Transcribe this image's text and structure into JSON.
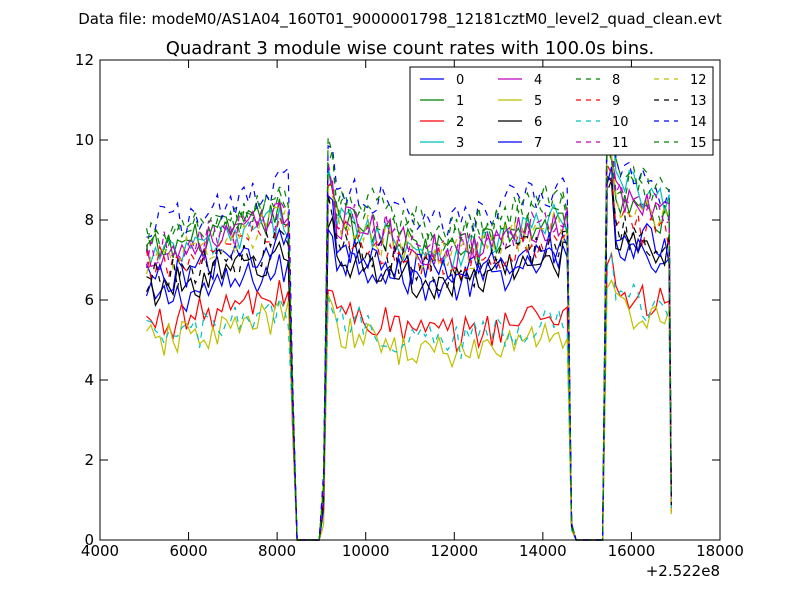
{
  "figure": {
    "suptitle": "Data file: modeM0/AS1A04_160T01_9000001798_12181cztM0_level2_quad_clean.evt",
    "title": "Quadrant 3 module wise count rates with 100.0s bins.",
    "offset_label": "+2.522e8"
  },
  "chart_data": {
    "type": "line",
    "title": "Quadrant 3 module wise count rates with 100.0s bins.",
    "xlabel": "",
    "ylabel": "",
    "xlim": [
      4000,
      18000
    ],
    "ylim": [
      0,
      12
    ],
    "x_offset": 252200000,
    "x_ticks": [
      4000,
      6000,
      8000,
      10000,
      12000,
      14000,
      16000,
      18000
    ],
    "y_ticks": [
      0,
      2,
      4,
      6,
      8,
      10,
      12
    ],
    "grid": false,
    "legend_position": "top-right",
    "legend_columns": 4,
    "x_start": 5050,
    "x_step": 100,
    "segments": [
      {
        "from": 5050,
        "to": 8250
      },
      {
        "from": 9150,
        "to": 14550
      },
      {
        "from": 15450,
        "to": 16850
      }
    ],
    "gaps": [
      {
        "from": 8350,
        "to": 9050
      },
      {
        "from": 14650,
        "to": 15350
      }
    ],
    "series": [
      {
        "name": "0",
        "color": "#0000ff",
        "dash": "solid",
        "levels": [
          6.3,
          6.7,
          7.0
        ]
      },
      {
        "name": "1",
        "color": "#008000",
        "dash": "solid",
        "levels": [
          7.6,
          7.6,
          7.9
        ]
      },
      {
        "name": "2",
        "color": "#ff0000",
        "dash": "solid",
        "levels": [
          5.7,
          5.4,
          5.8
        ]
      },
      {
        "name": "3",
        "color": "#00bfbf",
        "dash": "solid",
        "levels": [
          7.4,
          7.6,
          8.4
        ]
      },
      {
        "name": "4",
        "color": "#bf00bf",
        "dash": "solid",
        "levels": [
          7.5,
          7.6,
          8.1
        ]
      },
      {
        "name": "5",
        "color": "#bfbf00",
        "dash": "solid",
        "levels": [
          5.2,
          4.9,
          5.4
        ]
      },
      {
        "name": "6",
        "color": "#000000",
        "dash": "solid",
        "levels": [
          6.6,
          6.7,
          7.2
        ]
      },
      {
        "name": "7",
        "color": "#0000ff",
        "dash": "solid",
        "levels": [
          6.9,
          7.0,
          7.3
        ]
      },
      {
        "name": "8",
        "color": "#008000",
        "dash": "dashed",
        "levels": [
          7.8,
          8.0,
          8.3
        ]
      },
      {
        "name": "9",
        "color": "#ff0000",
        "dash": "dashed",
        "levels": [
          7.2,
          7.2,
          7.5
        ]
      },
      {
        "name": "10",
        "color": "#00bfbf",
        "dash": "dashed",
        "levels": [
          5.3,
          5.2,
          5.7
        ]
      },
      {
        "name": "11",
        "color": "#bf00bf",
        "dash": "dashed",
        "levels": [
          7.6,
          7.7,
          8.1
        ]
      },
      {
        "name": "12",
        "color": "#bfbf00",
        "dash": "dashed",
        "levels": [
          7.4,
          7.5,
          8.0
        ]
      },
      {
        "name": "13",
        "color": "#000000",
        "dash": "dashed",
        "levels": [
          6.9,
          7.0,
          7.3
        ]
      },
      {
        "name": "14",
        "color": "#0000ff",
        "dash": "dashed",
        "levels": [
          8.3,
          8.4,
          8.7
        ]
      },
      {
        "name": "15",
        "color": "#008000",
        "dash": "dashed",
        "levels": [
          7.9,
          8.2,
          8.6
        ]
      }
    ]
  }
}
